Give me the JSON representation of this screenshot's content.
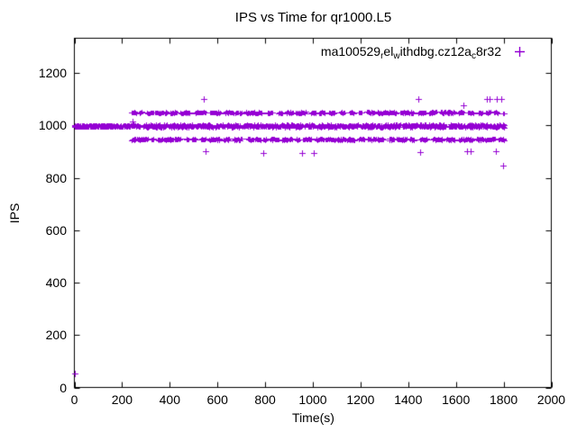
{
  "window": {
    "background": "#ffffff"
  },
  "chart_data": {
    "type": "scatter",
    "title": "IPS vs Time for qr1000.L5",
    "xlabel": "Time(s)",
    "ylabel": "IPS",
    "xlim": [
      0,
      2000
    ],
    "ylim": [
      0,
      1333
    ],
    "xticks": [
      0,
      200,
      400,
      600,
      800,
      1000,
      1200,
      1400,
      1600,
      1800,
      2000
    ],
    "yticks": [
      0,
      200,
      400,
      600,
      800,
      1000,
      1200
    ],
    "grid": false,
    "marker": "plus",
    "color": "#9400d3",
    "axis_color": "#000000",
    "legend": {
      "position": "top-right-inside",
      "marker": "plus",
      "parts": [
        {
          "text": "ma100529",
          "sub": false
        },
        {
          "text": "r",
          "sub": true
        },
        {
          "text": "el",
          "sub": false
        },
        {
          "text": "w",
          "sub": true
        },
        {
          "text": "ithdbg.cz12a",
          "sub": false
        },
        {
          "text": "c",
          "sub": true
        },
        {
          "text": "8r32",
          "sub": false
        }
      ]
    },
    "series": [
      {
        "name": "ma100529relwithdbg.cz12ac8r32",
        "seed": 42,
        "bands": [
          {
            "y": 998,
            "t_start": 0,
            "t_end": 243,
            "step": 1.2,
            "jitter": 5,
            "run": [
              300,
              300
            ],
            "gap": [
              0,
              0
            ]
          },
          {
            "y": 1049,
            "t_start": 240,
            "t_end": 1803,
            "step": 2.4,
            "jitter": 3,
            "run": [
              8,
              46
            ],
            "gap": [
              4,
              26
            ]
          },
          {
            "y": 998,
            "t_start": 243,
            "t_end": 1803,
            "step": 1.7,
            "jitter": 6,
            "run": [
              25,
              110
            ],
            "gap": [
              3,
              13
            ]
          },
          {
            "y": 947,
            "t_start": 240,
            "t_end": 1803,
            "step": 2.4,
            "jitter": 3,
            "run": [
              8,
              46
            ],
            "gap": [
              4,
              26
            ]
          }
        ],
        "outliers": [
          [
            0,
            52
          ],
          [
            245,
            1015
          ],
          [
            541,
            1100
          ],
          [
            549,
            902
          ],
          [
            792,
            895
          ],
          [
            954,
            895
          ],
          [
            1004,
            895
          ],
          [
            1443,
            1102
          ],
          [
            1449,
            900
          ],
          [
            1630,
            1078
          ],
          [
            1645,
            902
          ],
          [
            1661,
            902
          ],
          [
            1728,
            1100
          ],
          [
            1741,
            1100
          ],
          [
            1767,
            902
          ],
          [
            1772,
            1100
          ],
          [
            1789,
            1100
          ],
          [
            1799,
            848
          ]
        ]
      }
    ]
  }
}
